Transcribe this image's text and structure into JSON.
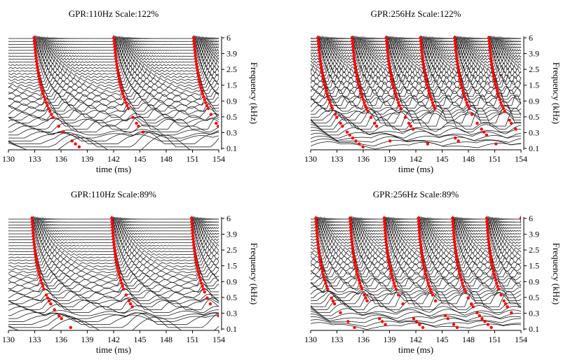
{
  "panels": [
    {
      "title": "GPR:110Hz Scale:122%",
      "chart_data": {
        "type": "line",
        "subtype": "auditory-image-waterfall",
        "title": "GPR:110Hz Scale:122%",
        "xlabel": "time (ms)",
        "ylabel": "Frequency (kHz)",
        "xlim": [
          130,
          154
        ],
        "x_ticks": [
          "130",
          "133",
          "136",
          "139",
          "142",
          "145",
          "148",
          "151",
          "154"
        ],
        "y_ticks": [
          "0.1",
          "0.3",
          "0.5",
          "0.9",
          "1.5",
          "2.5",
          "3.9",
          "6"
        ],
        "gpr_hz": 110,
        "period_ms": 9.09,
        "scale_percent": 122,
        "pulse_onsets_ms": [
          132.0,
          141.1,
          150.2
        ],
        "channels": 38,
        "marker_color": "#ff0000"
      }
    },
    {
      "title": "GPR:256Hz Scale:122%",
      "chart_data": {
        "type": "line",
        "subtype": "auditory-image-waterfall",
        "title": "GPR:256Hz Scale:122%",
        "xlabel": "time (ms)",
        "ylabel": "Frequency (kHz)",
        "xlim": [
          130,
          154
        ],
        "x_ticks": [
          "130",
          "133",
          "136",
          "139",
          "142",
          "145",
          "148",
          "151",
          "154"
        ],
        "y_ticks": [
          "0.1",
          "0.3",
          "0.5",
          "0.9",
          "1.5",
          "2.5",
          "3.9",
          "6"
        ],
        "gpr_hz": 256,
        "period_ms": 3.9,
        "scale_percent": 122,
        "pulse_onsets_ms": [
          129.9,
          133.8,
          137.7,
          141.6,
          145.5,
          149.4,
          153.3
        ],
        "channels": 38,
        "marker_color": "#ff0000"
      }
    },
    {
      "title": "GPR:110Hz Scale:89%",
      "chart_data": {
        "type": "line",
        "subtype": "auditory-image-waterfall",
        "title": "GPR:110Hz Scale:89%",
        "xlabel": "time (ms)",
        "ylabel": "Frequency (kHz)",
        "xlim": [
          130,
          154
        ],
        "x_ticks": [
          "130",
          "133",
          "136",
          "139",
          "142",
          "145",
          "148",
          "151",
          "154"
        ],
        "y_ticks": [
          "0.1",
          "0.3",
          "0.5",
          "0.9",
          "1.5",
          "2.5",
          "3.9",
          "6"
        ],
        "gpr_hz": 110,
        "period_ms": 9.09,
        "scale_percent": 89,
        "pulse_onsets_ms": [
          132.0,
          141.1,
          150.2
        ],
        "channels": 38,
        "marker_color": "#ff0000"
      }
    },
    {
      "title": "GPR:256Hz Scale:89%",
      "chart_data": {
        "type": "line",
        "subtype": "auditory-image-waterfall",
        "title": "GPR:256Hz Scale:89%",
        "xlabel": "time (ms)",
        "ylabel": "Frequency (kHz)",
        "xlim": [
          130,
          154
        ],
        "x_ticks": [
          "130",
          "133",
          "136",
          "139",
          "142",
          "145",
          "148",
          "151",
          "154"
        ],
        "y_ticks": [
          "0.1",
          "0.3",
          "0.5",
          "0.9",
          "1.5",
          "2.5",
          "3.9",
          "6"
        ],
        "gpr_hz": 256,
        "period_ms": 3.9,
        "scale_percent": 89,
        "pulse_onsets_ms": [
          129.9,
          133.8,
          137.7,
          141.6,
          145.5,
          149.4,
          153.3
        ],
        "channels": 38,
        "marker_color": "#ff0000"
      }
    }
  ]
}
